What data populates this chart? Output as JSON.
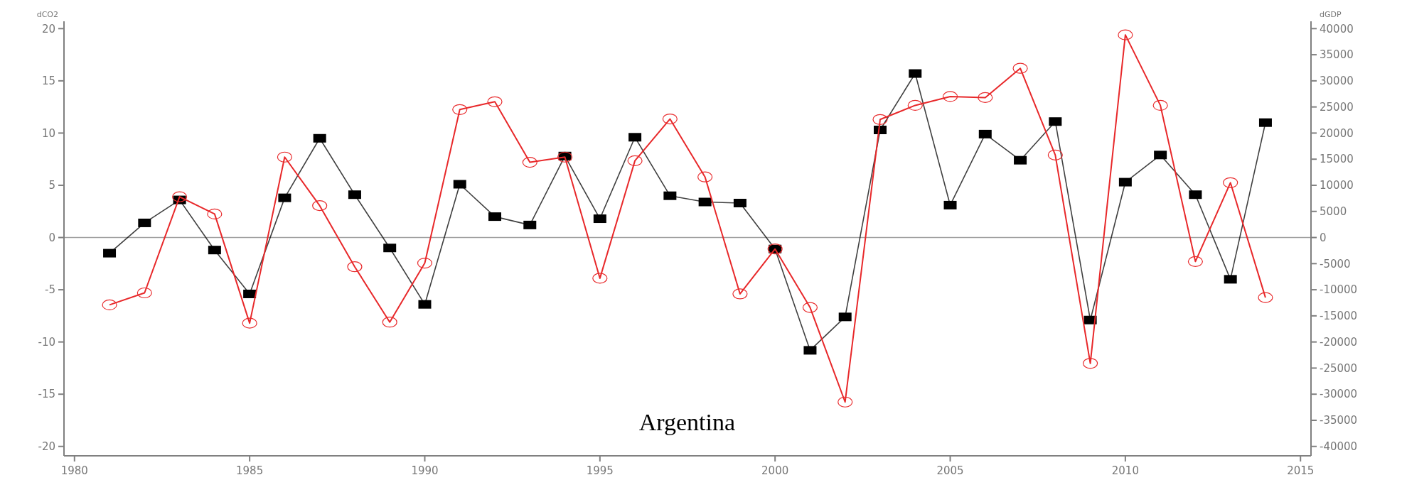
{
  "chart_data": {
    "type": "line",
    "ylabel": "dCO2",
    "y2label": "dGDP",
    "annotations": [
      "Argentina"
    ],
    "x": [
      1981,
      1982,
      1983,
      1984,
      1985,
      1986,
      1987,
      1988,
      1989,
      1990,
      1991,
      1992,
      1993,
      1994,
      1995,
      1996,
      1997,
      1998,
      1999,
      2000,
      2001,
      2002,
      2003,
      2004,
      2005,
      2006,
      2007,
      2008,
      2009,
      2010,
      2011,
      2012,
      2013,
      2014
    ],
    "xlim": [
      1979.7,
      2015.3
    ],
    "xticks": [
      1980,
      1985,
      1990,
      1995,
      2000,
      2005,
      2010,
      2015
    ],
    "ylim": [
      -20.9,
      20.7
    ],
    "yticks": [
      -20,
      -15,
      -10,
      -5,
      0,
      5,
      10,
      15,
      20
    ],
    "y2lim": [
      -41800,
      41400
    ],
    "y2ticks": [
      -40000,
      -35000,
      -30000,
      -25000,
      -20000,
      -15000,
      -10000,
      -5000,
      0,
      5000,
      10000,
      15000,
      20000,
      25000,
      30000,
      35000,
      40000
    ],
    "ref_lines": [
      {
        "axis": "y",
        "value": 0,
        "color": "#a0a0a0"
      }
    ],
    "grid": false,
    "line_style": "solid",
    "series": [
      {
        "color": "#000000",
        "marker": "square",
        "values": [
          -1.5,
          1.4,
          3.6,
          -1.2,
          -5.4,
          3.8,
          9.5,
          4.1,
          -1.0,
          -6.4,
          5.1,
          2.0,
          1.2,
          7.8,
          1.8,
          9.6,
          4.0,
          3.4,
          3.3,
          -1.1,
          -10.8,
          -7.6,
          10.3,
          15.7,
          3.1,
          9.9,
          7.4,
          11.1,
          -7.9,
          5.3,
          7.9,
          4.1,
          -4.0,
          11.0
        ]
      },
      {
        "color": "#e8282a",
        "marker": "circle",
        "axis": "y2",
        "values": [
          -12900,
          -10600,
          7800,
          4500,
          -16400,
          15400,
          6100,
          -5600,
          -16200,
          -4900,
          24500,
          26000,
          14400,
          15400,
          -7800,
          14700,
          22700,
          11600,
          -10800,
          -2200,
          -13400,
          -31500,
          22600,
          25300,
          27000,
          26800,
          32400,
          15800,
          -24100,
          38800,
          25300,
          -4600,
          10500,
          -11500
        ]
      }
    ]
  }
}
